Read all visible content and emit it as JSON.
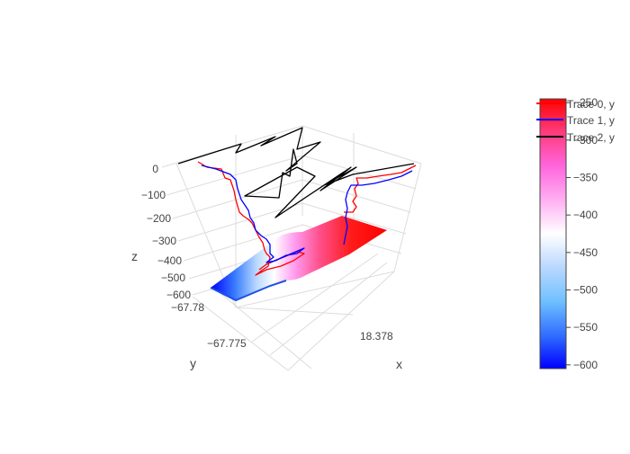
{
  "colors": {
    "trace0": "#ff0000",
    "trace1": "#0000ff",
    "trace2": "#000000",
    "grid": "#dcdcdc",
    "text": "#444444"
  },
  "chart_data": {
    "type": "surface",
    "title": "",
    "axes": {
      "x": {
        "label": "x",
        "tick_labels": [
          "18.378"
        ]
      },
      "y": {
        "label": "y",
        "tick_labels": [
          "−67.78",
          "−67.775"
        ]
      },
      "z": {
        "label": "z",
        "tick_labels": [
          "0",
          "−100",
          "−200",
          "−300",
          "−400",
          "−500",
          "−600"
        ],
        "range": [
          -620,
          20
        ]
      }
    },
    "legend": {
      "placement": "top-right",
      "entries": [
        {
          "name": "Trace 0, y",
          "color": "#ff0000"
        },
        {
          "name": "Trace 1, y",
          "color": "#0000ff"
        },
        {
          "name": "Trace 2, y",
          "color": "#000000"
        }
      ]
    },
    "colorbar": {
      "colorscale": "bwr",
      "range": [
        -605,
        -245
      ],
      "tick_labels": [
        "−250",
        "−300",
        "−350",
        "−400",
        "−450",
        "−500",
        "−550",
        "−600"
      ],
      "tick_values": [
        -250,
        -300,
        -350,
        -400,
        -450,
        -500,
        -550,
        -600
      ]
    },
    "surface": {
      "z_low": -600,
      "z_high": -250,
      "description_z_along_x": [
        -600,
        -560,
        -520,
        -470,
        -420,
        -380,
        -340,
        -300,
        -270,
        -250
      ]
    },
    "series": [
      {
        "name": "Trace 0, y",
        "kind": "line3d",
        "z_start": -10,
        "z_end": -520
      },
      {
        "name": "Trace 1, y",
        "kind": "line3d",
        "z_start": -10,
        "z_end": -520
      },
      {
        "name": "Trace 2, y",
        "kind": "line3d",
        "z_start": 0,
        "z_end": -250
      }
    ],
    "grid": true
  }
}
